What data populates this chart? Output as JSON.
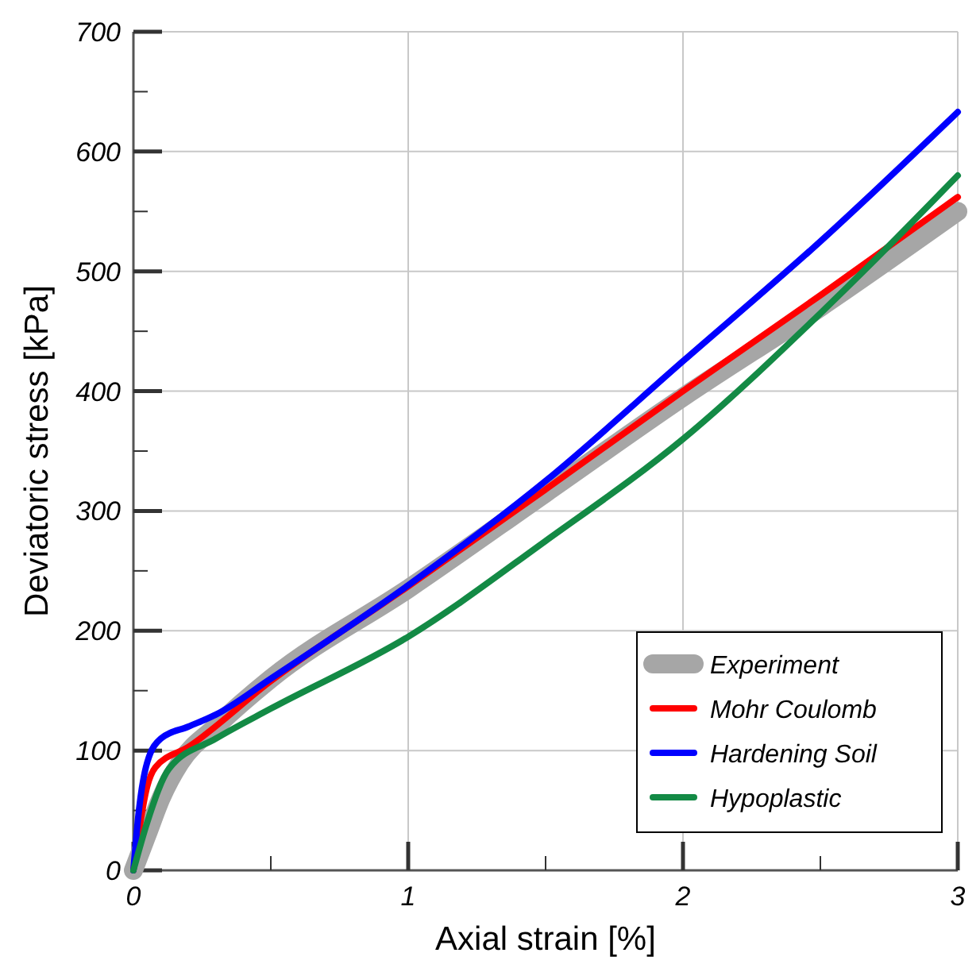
{
  "chart_data": {
    "type": "line",
    "xlabel": "Axial strain [%]",
    "ylabel": "Deviatoric stress [kPa]",
    "xlim": [
      0,
      3
    ],
    "ylim": [
      0,
      700
    ],
    "xticks": [
      0,
      {
        "value": 0.5,
        "label": null
      },
      1,
      {
        "value": 1.5,
        "label": null
      },
      2,
      {
        "value": 2.5,
        "label": null
      },
      3
    ],
    "yticks": [
      0,
      {
        "value": 50,
        "label": null
      },
      100,
      {
        "value": 150,
        "label": null
      },
      200,
      {
        "value": 250,
        "label": null
      },
      300,
      {
        "value": 350,
        "label": null
      },
      400,
      {
        "value": 450,
        "label": null
      },
      500,
      {
        "value": 550,
        "label": null
      },
      600,
      {
        "value": 650,
        "label": null
      },
      700
    ],
    "grid": true,
    "legend": "bottom right",
    "marker": "none",
    "line_style": "solid",
    "series": [
      {
        "name": "Experiment",
        "color": "#a6a6a6",
        "x": [
          0,
          0.05,
          0.1,
          0.17,
          0.3,
          0.5,
          1,
          1.5,
          2,
          2.5,
          3
        ],
        "values": [
          0,
          30,
          60,
          90,
          120,
          160,
          235,
          315,
          395,
          470,
          550
        ]
      },
      {
        "name": "Mohr Coulomb",
        "color": "#ff0000",
        "x": [
          0,
          0.05,
          0.08,
          0.2,
          0.5,
          1,
          1.5,
          2,
          2.5,
          3
        ],
        "values": [
          0,
          70,
          86,
          103,
          158,
          237,
          318,
          400,
          480,
          562
        ]
      },
      {
        "name": "Hardening Soil",
        "color": "#0000ff",
        "x": [
          0,
          0.02,
          0.05,
          0.1,
          0.2,
          0.3,
          0.5,
          1,
          1.5,
          2,
          2.5,
          3
        ],
        "values": [
          0,
          50,
          90,
          110,
          120,
          130,
          160,
          238,
          325,
          425,
          525,
          633
        ]
      },
      {
        "name": "Hypoplastic",
        "color": "#138a45",
        "x": [
          0,
          0.05,
          0.13,
          0.3,
          0.5,
          1,
          1.5,
          2,
          2.5,
          2.7,
          3
        ],
        "values": [
          0,
          40,
          85,
          110,
          135,
          195,
          275,
          360,
          465,
          510,
          580
        ]
      }
    ]
  }
}
